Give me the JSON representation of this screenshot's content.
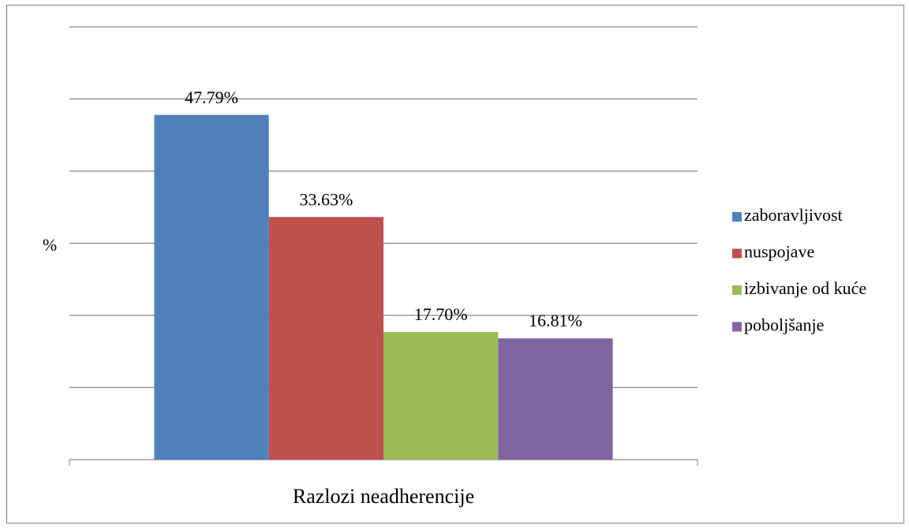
{
  "chart_data": {
    "type": "bar",
    "ylabel": "%",
    "categories": [
      "Razlozi neadherencije"
    ],
    "series": [
      {
        "name": "zaboravljivost",
        "color": "#4f81bd",
        "values": [
          47.79
        ],
        "value_labels": [
          "47.79%"
        ]
      },
      {
        "name": "nuspojave",
        "color": "#c0504d",
        "values": [
          33.63
        ],
        "value_labels": [
          "33.63%"
        ]
      },
      {
        "name": "izbivanje od kuće",
        "color": "#9bbb59",
        "values": [
          17.7
        ],
        "value_labels": [
          "17.70%"
        ]
      },
      {
        "name": "poboljšanje",
        "color": "#8064a2",
        "values": [
          16.81
        ],
        "value_labels": [
          "16.81%"
        ]
      }
    ],
    "ylim": [
      0,
      60
    ],
    "yticks": [
      0,
      10,
      20,
      30,
      40,
      50,
      60
    ],
    "grid": true,
    "legend": "right"
  }
}
